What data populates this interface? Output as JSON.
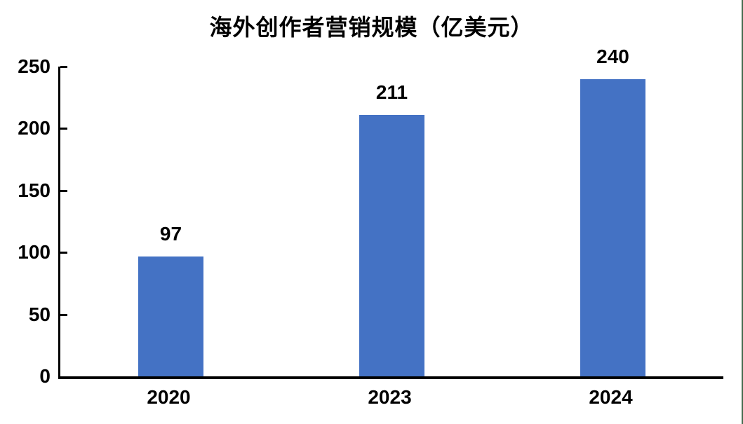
{
  "chart_data": {
    "type": "bar",
    "title": "海外创作者营销规模（亿美元）",
    "categories": [
      "2020",
      "2023",
      "2024"
    ],
    "values": [
      97,
      211,
      240
    ],
    "xlabel": "",
    "ylabel": "",
    "ylim": [
      0,
      250
    ],
    "yticks": [
      0,
      50,
      100,
      150,
      200,
      250
    ],
    "grid": false,
    "legend": "none",
    "data_labels_shown": true,
    "colors": {
      "bar": "#4472C4",
      "axis": "#000000",
      "text": "#000000",
      "frame_right": "#456b4f"
    }
  }
}
